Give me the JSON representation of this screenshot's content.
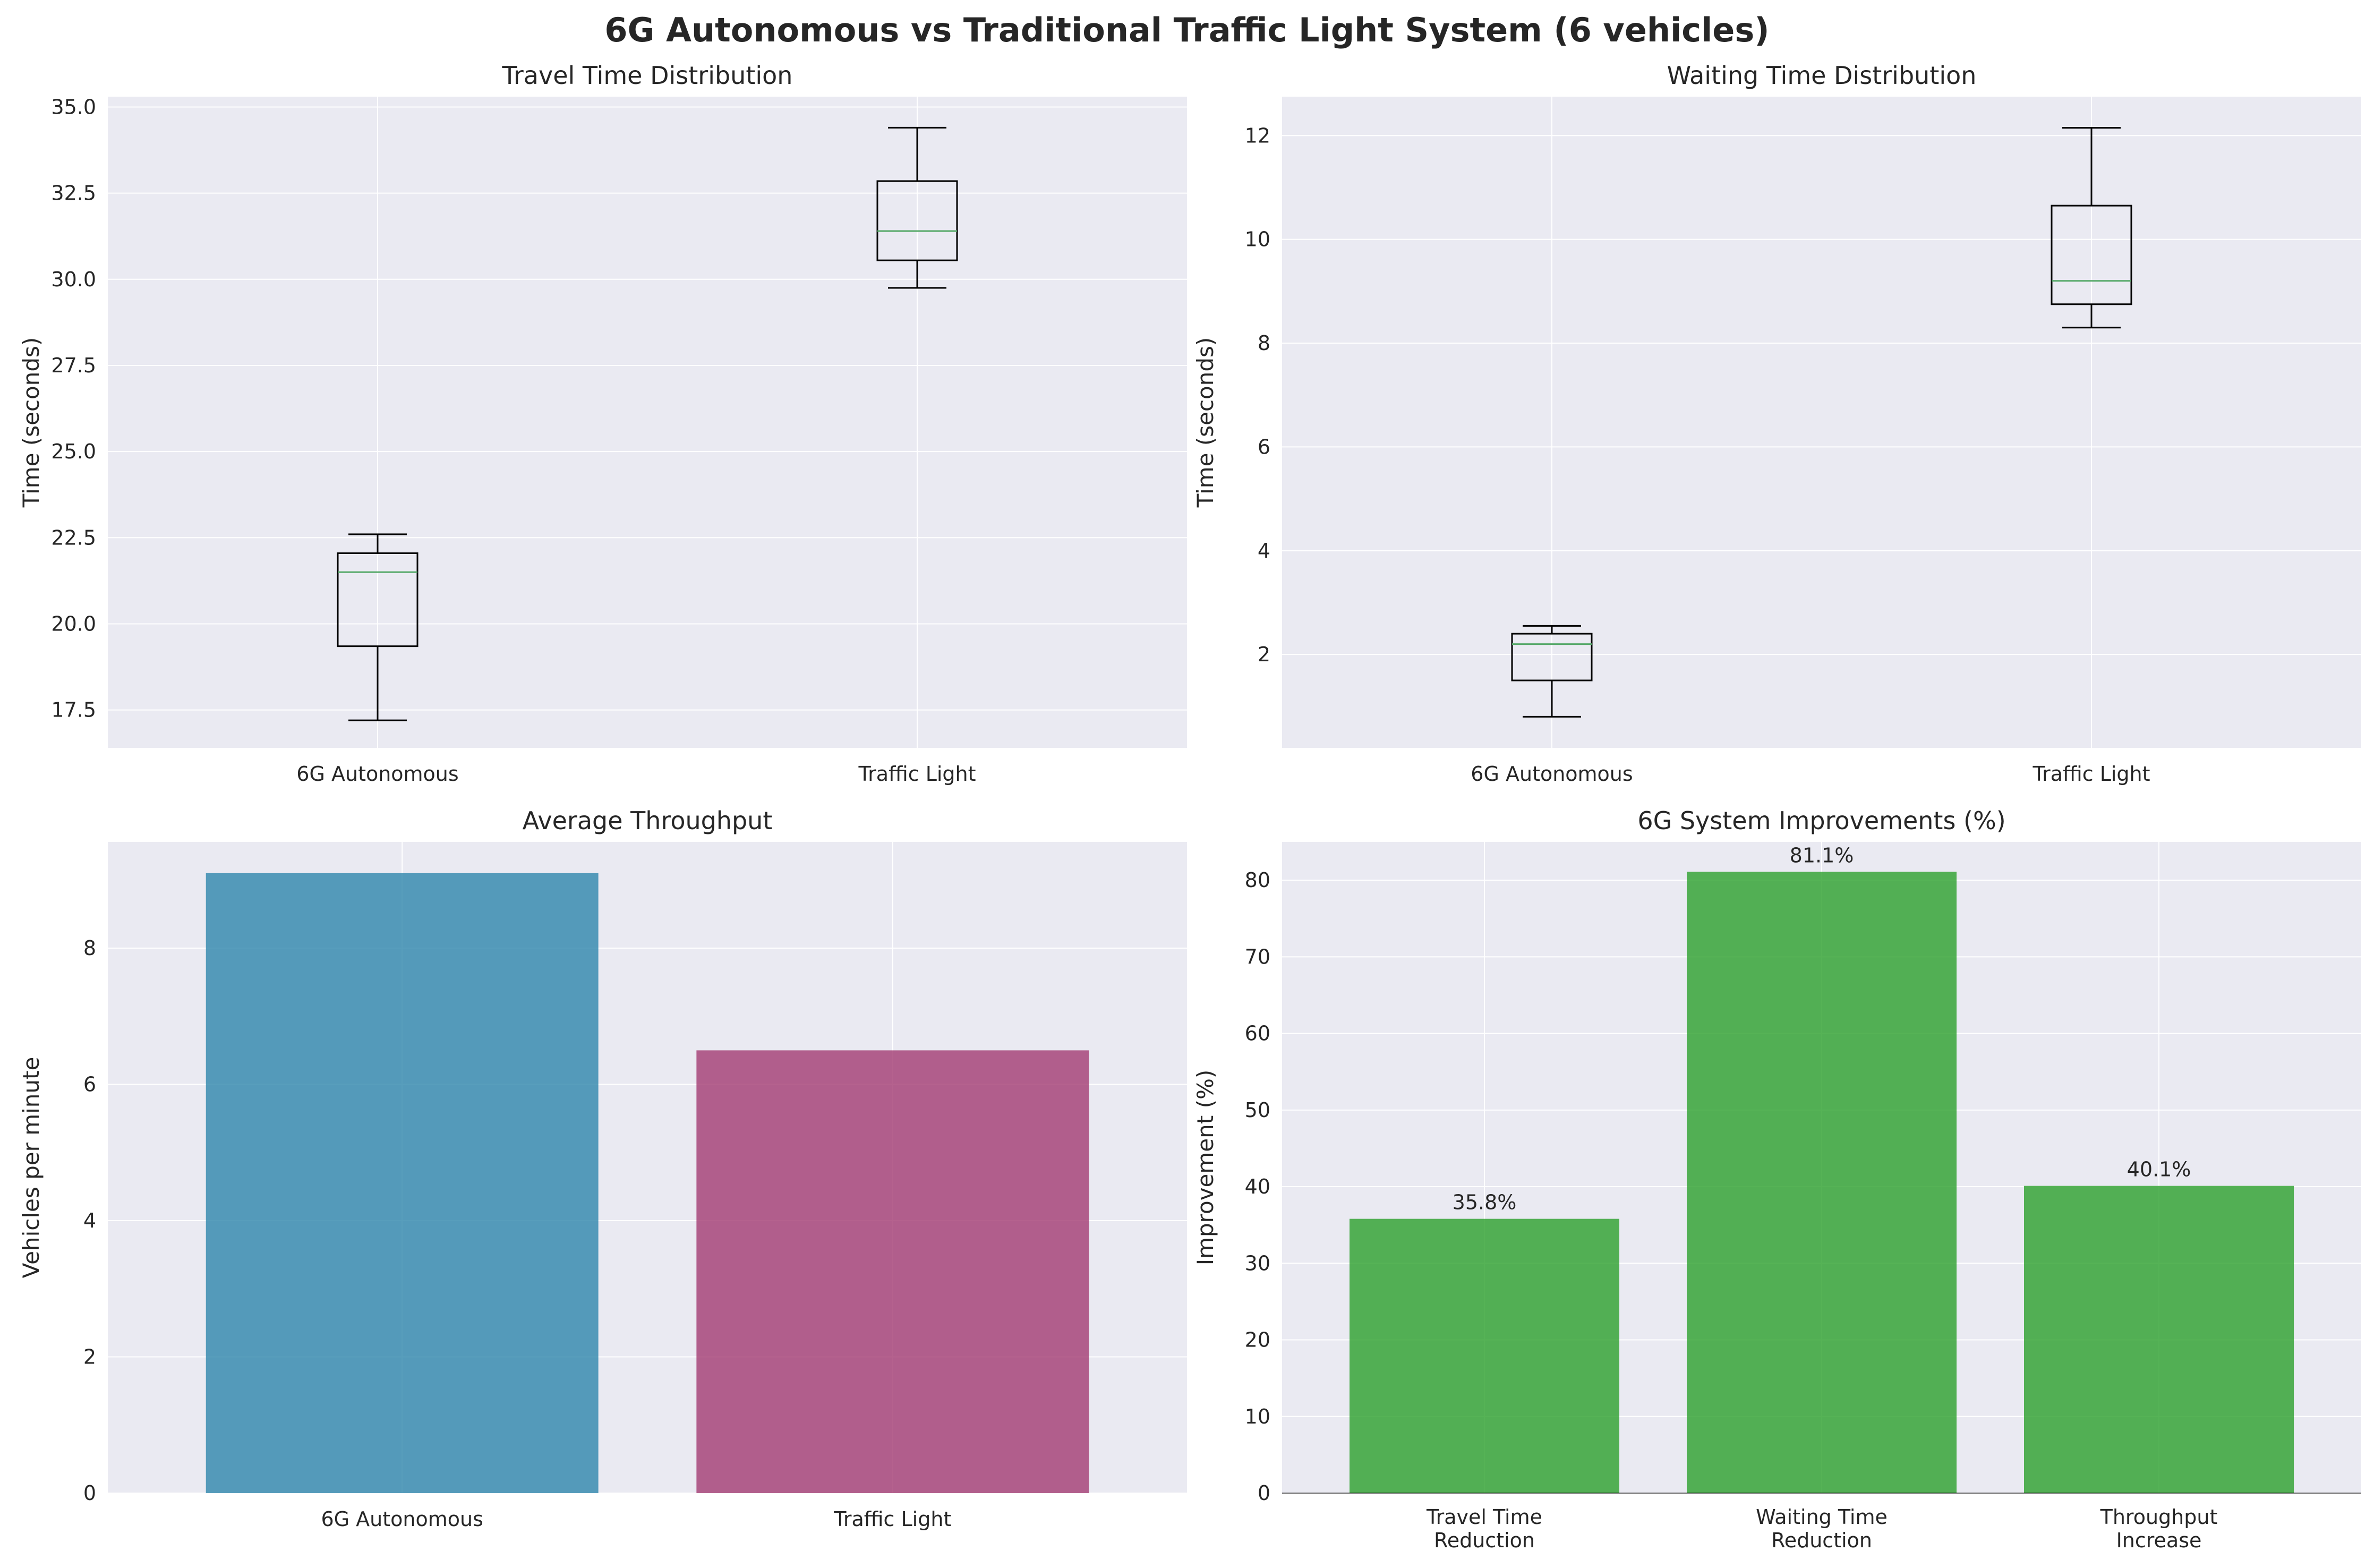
{
  "colors": {
    "background": "#EAEAF2",
    "grid": "#ffffff",
    "median": "#55A868",
    "box": "#000000",
    "bar_6g": "#2E86AB",
    "bar_traffic": "#A23B72",
    "improve": "#2CA02C"
  },
  "chart_data": {
    "suptitle": "6G Autonomous vs Traditional Traffic Light System (6 vehicles)",
    "panels": [
      {
        "id": "travel",
        "type": "box",
        "title": "Travel Time Distribution",
        "ylabel": "Time (seconds)",
        "ylim": [
          16.4,
          35.3
        ],
        "yticks": [
          17.5,
          20.0,
          22.5,
          25.0,
          27.5,
          30.0,
          32.5,
          35.0
        ],
        "ytick_labels": [
          "17.5",
          "20.0",
          "22.5",
          "25.0",
          "27.5",
          "30.0",
          "32.5",
          "35.0"
        ],
        "categories": [
          "6G Autonomous",
          "Traffic Light"
        ],
        "boxes": [
          {
            "whislo": 17.2,
            "q1": 19.35,
            "med": 21.5,
            "q3": 22.05,
            "whishi": 22.6
          },
          {
            "whislo": 29.75,
            "q1": 30.55,
            "med": 31.4,
            "q3": 32.85,
            "whishi": 34.4
          }
        ]
      },
      {
        "id": "waiting",
        "type": "box",
        "title": "Waiting Time Distribution",
        "ylabel": "Time (seconds)",
        "ylim": [
          0.2,
          12.75
        ],
        "yticks": [
          2,
          4,
          6,
          8,
          10,
          12
        ],
        "ytick_labels": [
          "2",
          "4",
          "6",
          "8",
          "10",
          "12"
        ],
        "categories": [
          "6G Autonomous",
          "Traffic Light"
        ],
        "boxes": [
          {
            "whislo": 0.8,
            "q1": 1.5,
            "med": 2.2,
            "q3": 2.4,
            "whishi": 2.55
          },
          {
            "whislo": 8.3,
            "q1": 8.75,
            "med": 9.2,
            "q3": 10.65,
            "whishi": 12.15
          }
        ]
      },
      {
        "id": "throughput",
        "type": "bar",
        "title": "Average Throughput",
        "ylabel": "Vehicles per minute",
        "ylim": [
          0,
          9.56
        ],
        "yticks": [
          0,
          2,
          4,
          6,
          8
        ],
        "ytick_labels": [
          "0",
          "2",
          "4",
          "6",
          "8"
        ],
        "categories": [
          "6G Autonomous",
          "Traffic Light"
        ],
        "values": [
          9.1,
          6.5
        ]
      },
      {
        "id": "improvement",
        "type": "bar",
        "title": "6G System Improvements (%)",
        "ylabel": "Improvement (%)",
        "ylim": [
          0,
          85
        ],
        "yticks": [
          0,
          10,
          20,
          30,
          40,
          50,
          60,
          70,
          80
        ],
        "ytick_labels": [
          "0",
          "10",
          "20",
          "30",
          "40",
          "50",
          "60",
          "70",
          "80"
        ],
        "categories": [
          [
            "Travel Time",
            "Reduction"
          ],
          [
            "Waiting Time",
            "Reduction"
          ],
          [
            "Throughput",
            "Increase"
          ]
        ],
        "values": [
          35.8,
          81.1,
          40.1
        ],
        "data_labels": [
          "35.8%",
          "81.1%",
          "40.1%"
        ]
      }
    ]
  }
}
